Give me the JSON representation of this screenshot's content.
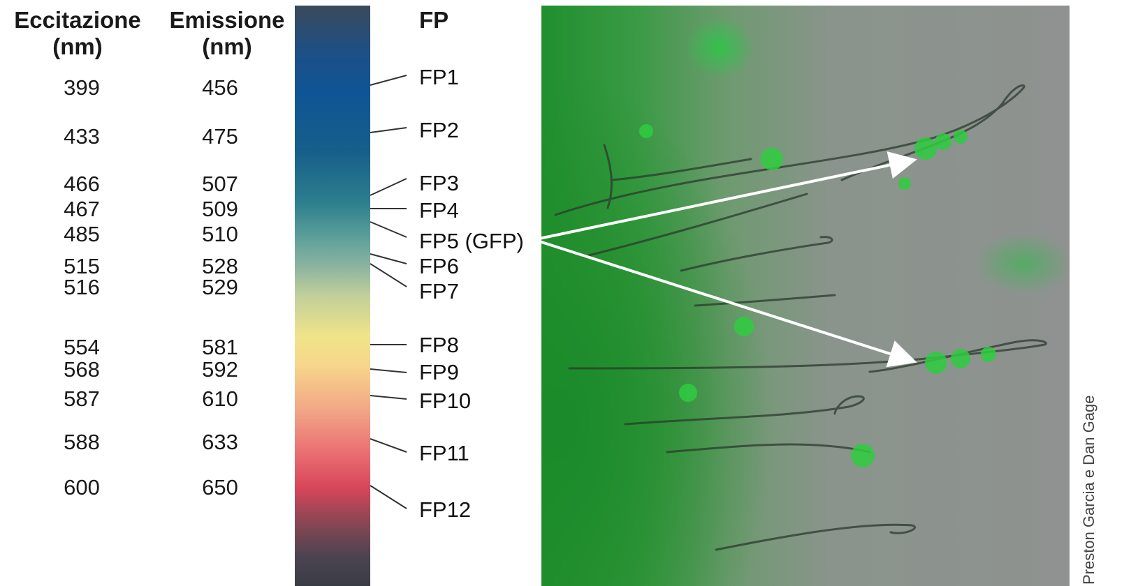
{
  "headers": {
    "excitation": [
      "Eccitazione",
      "(nm)"
    ],
    "emission": [
      "Emissione",
      "(nm)"
    ],
    "fp": "FP"
  },
  "proteins": [
    {
      "excitation": "399",
      "emission": "456",
      "label": "FP1"
    },
    {
      "excitation": "433",
      "emission": "475",
      "label": "FP2"
    },
    {
      "excitation": "466",
      "emission": "507",
      "label": "FP3"
    },
    {
      "excitation": "467",
      "emission": "509",
      "label": "FP4"
    },
    {
      "excitation": "485",
      "emission": "510",
      "label": "FP5 (GFP)"
    },
    {
      "excitation": "515",
      "emission": "528",
      "label": "FP6"
    },
    {
      "excitation": "516",
      "emission": "529",
      "label": "FP7"
    },
    {
      "excitation": "554",
      "emission": "581",
      "label": "FP8"
    },
    {
      "excitation": "568",
      "emission": "592",
      "label": "FP9"
    },
    {
      "excitation": "587",
      "emission": "610",
      "label": "FP10"
    },
    {
      "excitation": "588",
      "emission": "633",
      "label": "FP11"
    },
    {
      "excitation": "600",
      "emission": "650",
      "label": "FP12"
    }
  ],
  "image": {
    "description_icon": "microscopy-green-fluorescence"
  },
  "credit": "Preston Garcia e Dan Gage",
  "colors": {
    "arrow": "#ffffff",
    "leader": "#333333",
    "fluorescence": "#2ecc40"
  }
}
